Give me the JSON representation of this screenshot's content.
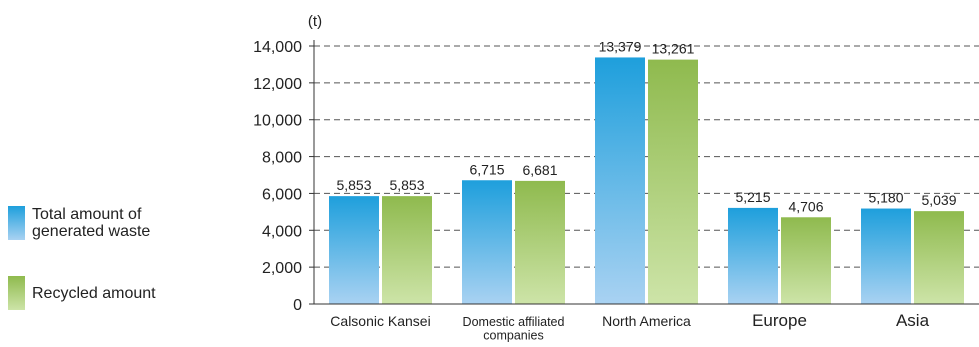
{
  "chart_data": {
    "type": "bar",
    "unit_label": "(t)",
    "categories": [
      "Calsonic Kansei",
      "Domestic affiliated\ncompanies",
      "North America",
      "Europe",
      "Asia"
    ],
    "series": [
      {
        "name": "Total amount of\ngenerated waste",
        "values": [
          5853,
          6715,
          13379,
          5215,
          5180
        ],
        "labels": [
          "5,853",
          "6,715",
          "13,379",
          "5,215",
          "5,180"
        ],
        "color_top": "#1e9fdc",
        "color_bottom": "#a9d2f2"
      },
      {
        "name": "Recycled amount",
        "values": [
          5853,
          6681,
          13261,
          4706,
          5039
        ],
        "labels": [
          "5,853",
          "6,681",
          "13,261",
          "4,706",
          "5,039"
        ],
        "color_top": "#8fba4e",
        "color_bottom": "#cde4a8"
      }
    ],
    "ylim": [
      0,
      14000
    ],
    "yticks": [
      0,
      2000,
      4000,
      6000,
      8000,
      10000,
      12000,
      14000
    ],
    "ytick_labels": [
      "0",
      "2,000",
      "4,000",
      "6,000",
      "8,000",
      "10,000",
      "12,000",
      "14,000"
    ],
    "grid": true,
    "legend": "left"
  }
}
